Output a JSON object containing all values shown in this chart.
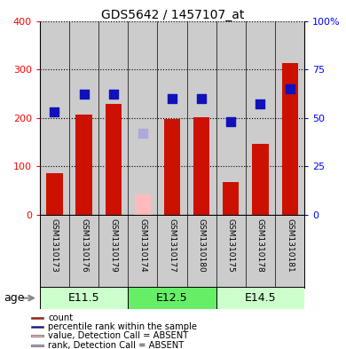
{
  "title": "GDS5642 / 1457107_at",
  "samples": [
    "GSM1310173",
    "GSM1310176",
    "GSM1310179",
    "GSM1310174",
    "GSM1310177",
    "GSM1310180",
    "GSM1310175",
    "GSM1310178",
    "GSM1310181"
  ],
  "count_values": [
    85,
    207,
    228,
    null,
    198,
    202,
    68,
    147,
    313
  ],
  "count_absent": [
    null,
    null,
    null,
    42,
    null,
    null,
    null,
    null,
    null
  ],
  "percentile_values": [
    53,
    62,
    62,
    null,
    60,
    60,
    48,
    57,
    65
  ],
  "percentile_absent": [
    null,
    null,
    null,
    42,
    null,
    null,
    null,
    null,
    null
  ],
  "age_groups": [
    {
      "label": "E11.5",
      "start": 0,
      "end": 3,
      "color": "#ccffcc"
    },
    {
      "label": "E12.5",
      "start": 3,
      "end": 6,
      "color": "#66ee66"
    },
    {
      "label": "E14.5",
      "start": 6,
      "end": 9,
      "color": "#ccffcc"
    }
  ],
  "ylim_left": [
    0,
    400
  ],
  "ylim_right": [
    0,
    100
  ],
  "yticks_left": [
    0,
    100,
    200,
    300,
    400
  ],
  "yticks_right": [
    0,
    25,
    50,
    75,
    100
  ],
  "ytick_labels_right": [
    "0",
    "25",
    "50",
    "75",
    "100%"
  ],
  "bar_color": "#cc1100",
  "bar_absent_color": "#ffbbbb",
  "dot_color": "#1111bb",
  "dot_absent_color": "#aaaadd",
  "bg_color": "#cccccc",
  "bar_width": 0.55,
  "dot_size": 45,
  "legend_items": [
    {
      "label": "count",
      "color": "#cc1100"
    },
    {
      "label": "percentile rank within the sample",
      "color": "#1111bb"
    },
    {
      "label": "value, Detection Call = ABSENT",
      "color": "#ffbbbb"
    },
    {
      "label": "rank, Detection Call = ABSENT",
      "color": "#aaaadd"
    }
  ]
}
